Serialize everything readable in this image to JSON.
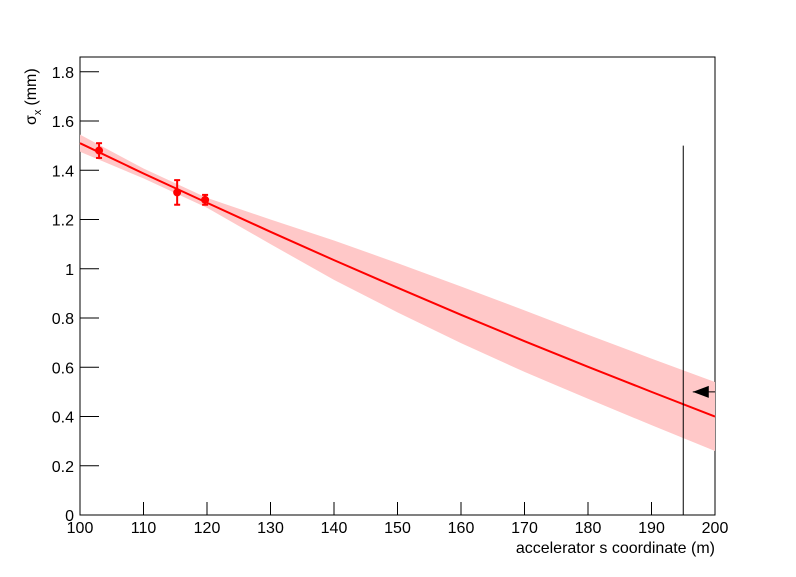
{
  "chart_data": {
    "type": "fit",
    "xlabel": "accelerator s coordinate (m)",
    "ylabel": "σ",
    "ylabel_sub": "x",
    "ylabel_unit": "(mm)",
    "xlim": [
      100,
      200
    ],
    "ylim": [
      0,
      1.86
    ],
    "xticks": [
      100,
      110,
      120,
      130,
      140,
      150,
      160,
      170,
      180,
      190,
      200
    ],
    "yticks": [
      0,
      0.2,
      0.4,
      0.6,
      0.8,
      1,
      1.2,
      1.4,
      1.6,
      1.8
    ],
    "color": "#ff0000",
    "band_color": "#ffc8c8",
    "points": {
      "x": [
        103,
        115.3,
        119.7
      ],
      "values": [
        1.48,
        1.31,
        1.28
      ],
      "errors": [
        0.03,
        0.05,
        0.02
      ]
    },
    "fit": {
      "x": [
        100,
        110,
        120,
        130,
        140,
        150,
        160,
        170,
        180,
        190,
        200
      ],
      "values": [
        1.51,
        1.387,
        1.268,
        1.15,
        1.035,
        0.923,
        0.813,
        0.706,
        0.602,
        0.5,
        0.4
      ],
      "lower": [
        1.475,
        1.367,
        1.248,
        1.1,
        0.955,
        0.823,
        0.698,
        0.581,
        0.472,
        0.365,
        0.26
      ],
      "upper": [
        1.545,
        1.407,
        1.288,
        1.2,
        1.115,
        1.023,
        0.928,
        0.831,
        0.732,
        0.635,
        0.54
      ]
    },
    "marker_line": {
      "x": 195,
      "y": [
        0,
        1.5
      ]
    },
    "arrow": {
      "x": [
        200,
        196.5
      ],
      "y": 0.5
    }
  }
}
